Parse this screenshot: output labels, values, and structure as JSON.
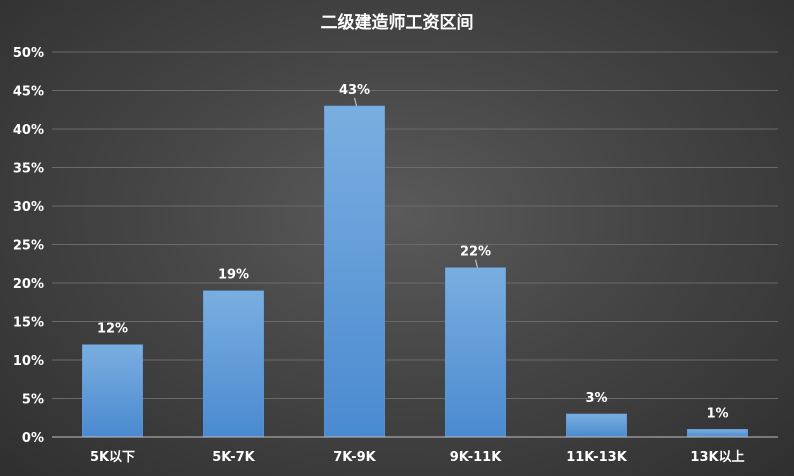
{
  "chart_data": {
    "type": "bar",
    "title": "二级建造师工资区间",
    "categories": [
      "5K以下",
      "5K-7K",
      "7K-9K",
      "9K-11K",
      "11K-13K",
      "13K以上"
    ],
    "values": [
      12,
      19,
      43,
      22,
      3,
      1
    ],
    "value_labels": [
      "12%",
      "19%",
      "43%",
      "22%",
      "3%",
      "1%"
    ],
    "yticks": [
      "0%",
      "5%",
      "10%",
      "15%",
      "20%",
      "25%",
      "30%",
      "35%",
      "40%",
      "45%",
      "50%"
    ],
    "ylim": [
      0,
      50
    ],
    "grid": true,
    "legend": "none",
    "bar_color_top": "#7aaee0",
    "bar_color_bottom": "#4a8ad0",
    "background_color": "#3a3a3a"
  }
}
